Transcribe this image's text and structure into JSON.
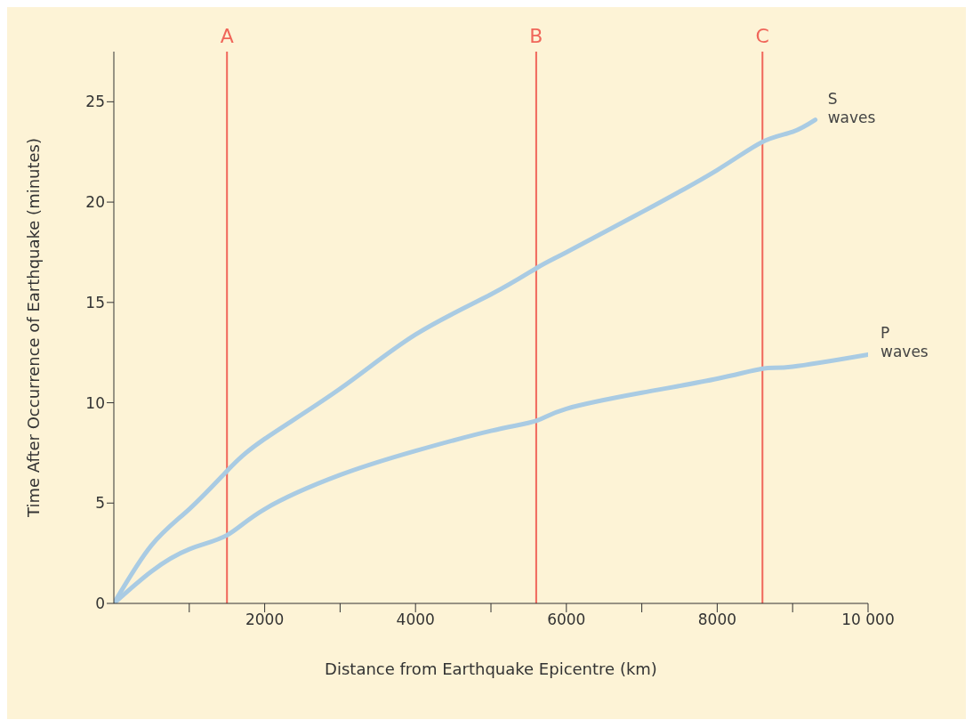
{
  "chart_data": {
    "type": "line",
    "xlabel": "Distance from Earthquake Epicentre (km)",
    "ylabel": "Time After Occurrence of Earthquake (minutes)",
    "xlim": [
      0,
      10000
    ],
    "ylim": [
      0,
      27.5
    ],
    "xticks": [
      {
        "value": 1000,
        "label": null
      },
      2000,
      {
        "value": 3000,
        "label": null
      },
      4000,
      {
        "value": 5000,
        "label": null
      },
      6000,
      {
        "value": 7000,
        "label": null
      },
      8000,
      {
        "value": 9000,
        "label": null
      },
      {
        "value": 10000,
        "label": "10 000"
      }
    ],
    "yticks": [
      0,
      5,
      10,
      15,
      20,
      25
    ],
    "grid": false,
    "legend": false,
    "marker": "none",
    "line_style": "solid",
    "series": [
      {
        "name": "S waves",
        "color": "#a9cbe3",
        "x": [
          0,
          500,
          1000,
          1500,
          2000,
          3000,
          4000,
          5000,
          5600,
          6000,
          7000,
          8000,
          8600,
          9000,
          9300
        ],
        "values": [
          0,
          2.9,
          4.7,
          6.6,
          8.2,
          10.7,
          13.4,
          15.4,
          16.7,
          17.5,
          19.5,
          21.6,
          23.0,
          23.5,
          24.1
        ]
      },
      {
        "name": "P waves",
        "color": "#a9cbe3",
        "x": [
          0,
          500,
          1000,
          1500,
          2000,
          3000,
          4000,
          5000,
          5600,
          6000,
          7000,
          8000,
          8600,
          9000,
          10000
        ],
        "values": [
          0,
          1.6,
          2.7,
          3.4,
          4.7,
          6.4,
          7.6,
          8.6,
          9.1,
          9.7,
          10.5,
          11.2,
          11.7,
          11.8,
          12.4
        ]
      }
    ],
    "ref_lines": [
      {
        "axis": "x",
        "value": 1500,
        "label": "A",
        "color": "#f0665a"
      },
      {
        "axis": "x",
        "value": 5600,
        "label": "B",
        "color": "#f0665a"
      },
      {
        "axis": "x",
        "value": 8600,
        "label": "C",
        "color": "#f0665a"
      }
    ]
  }
}
